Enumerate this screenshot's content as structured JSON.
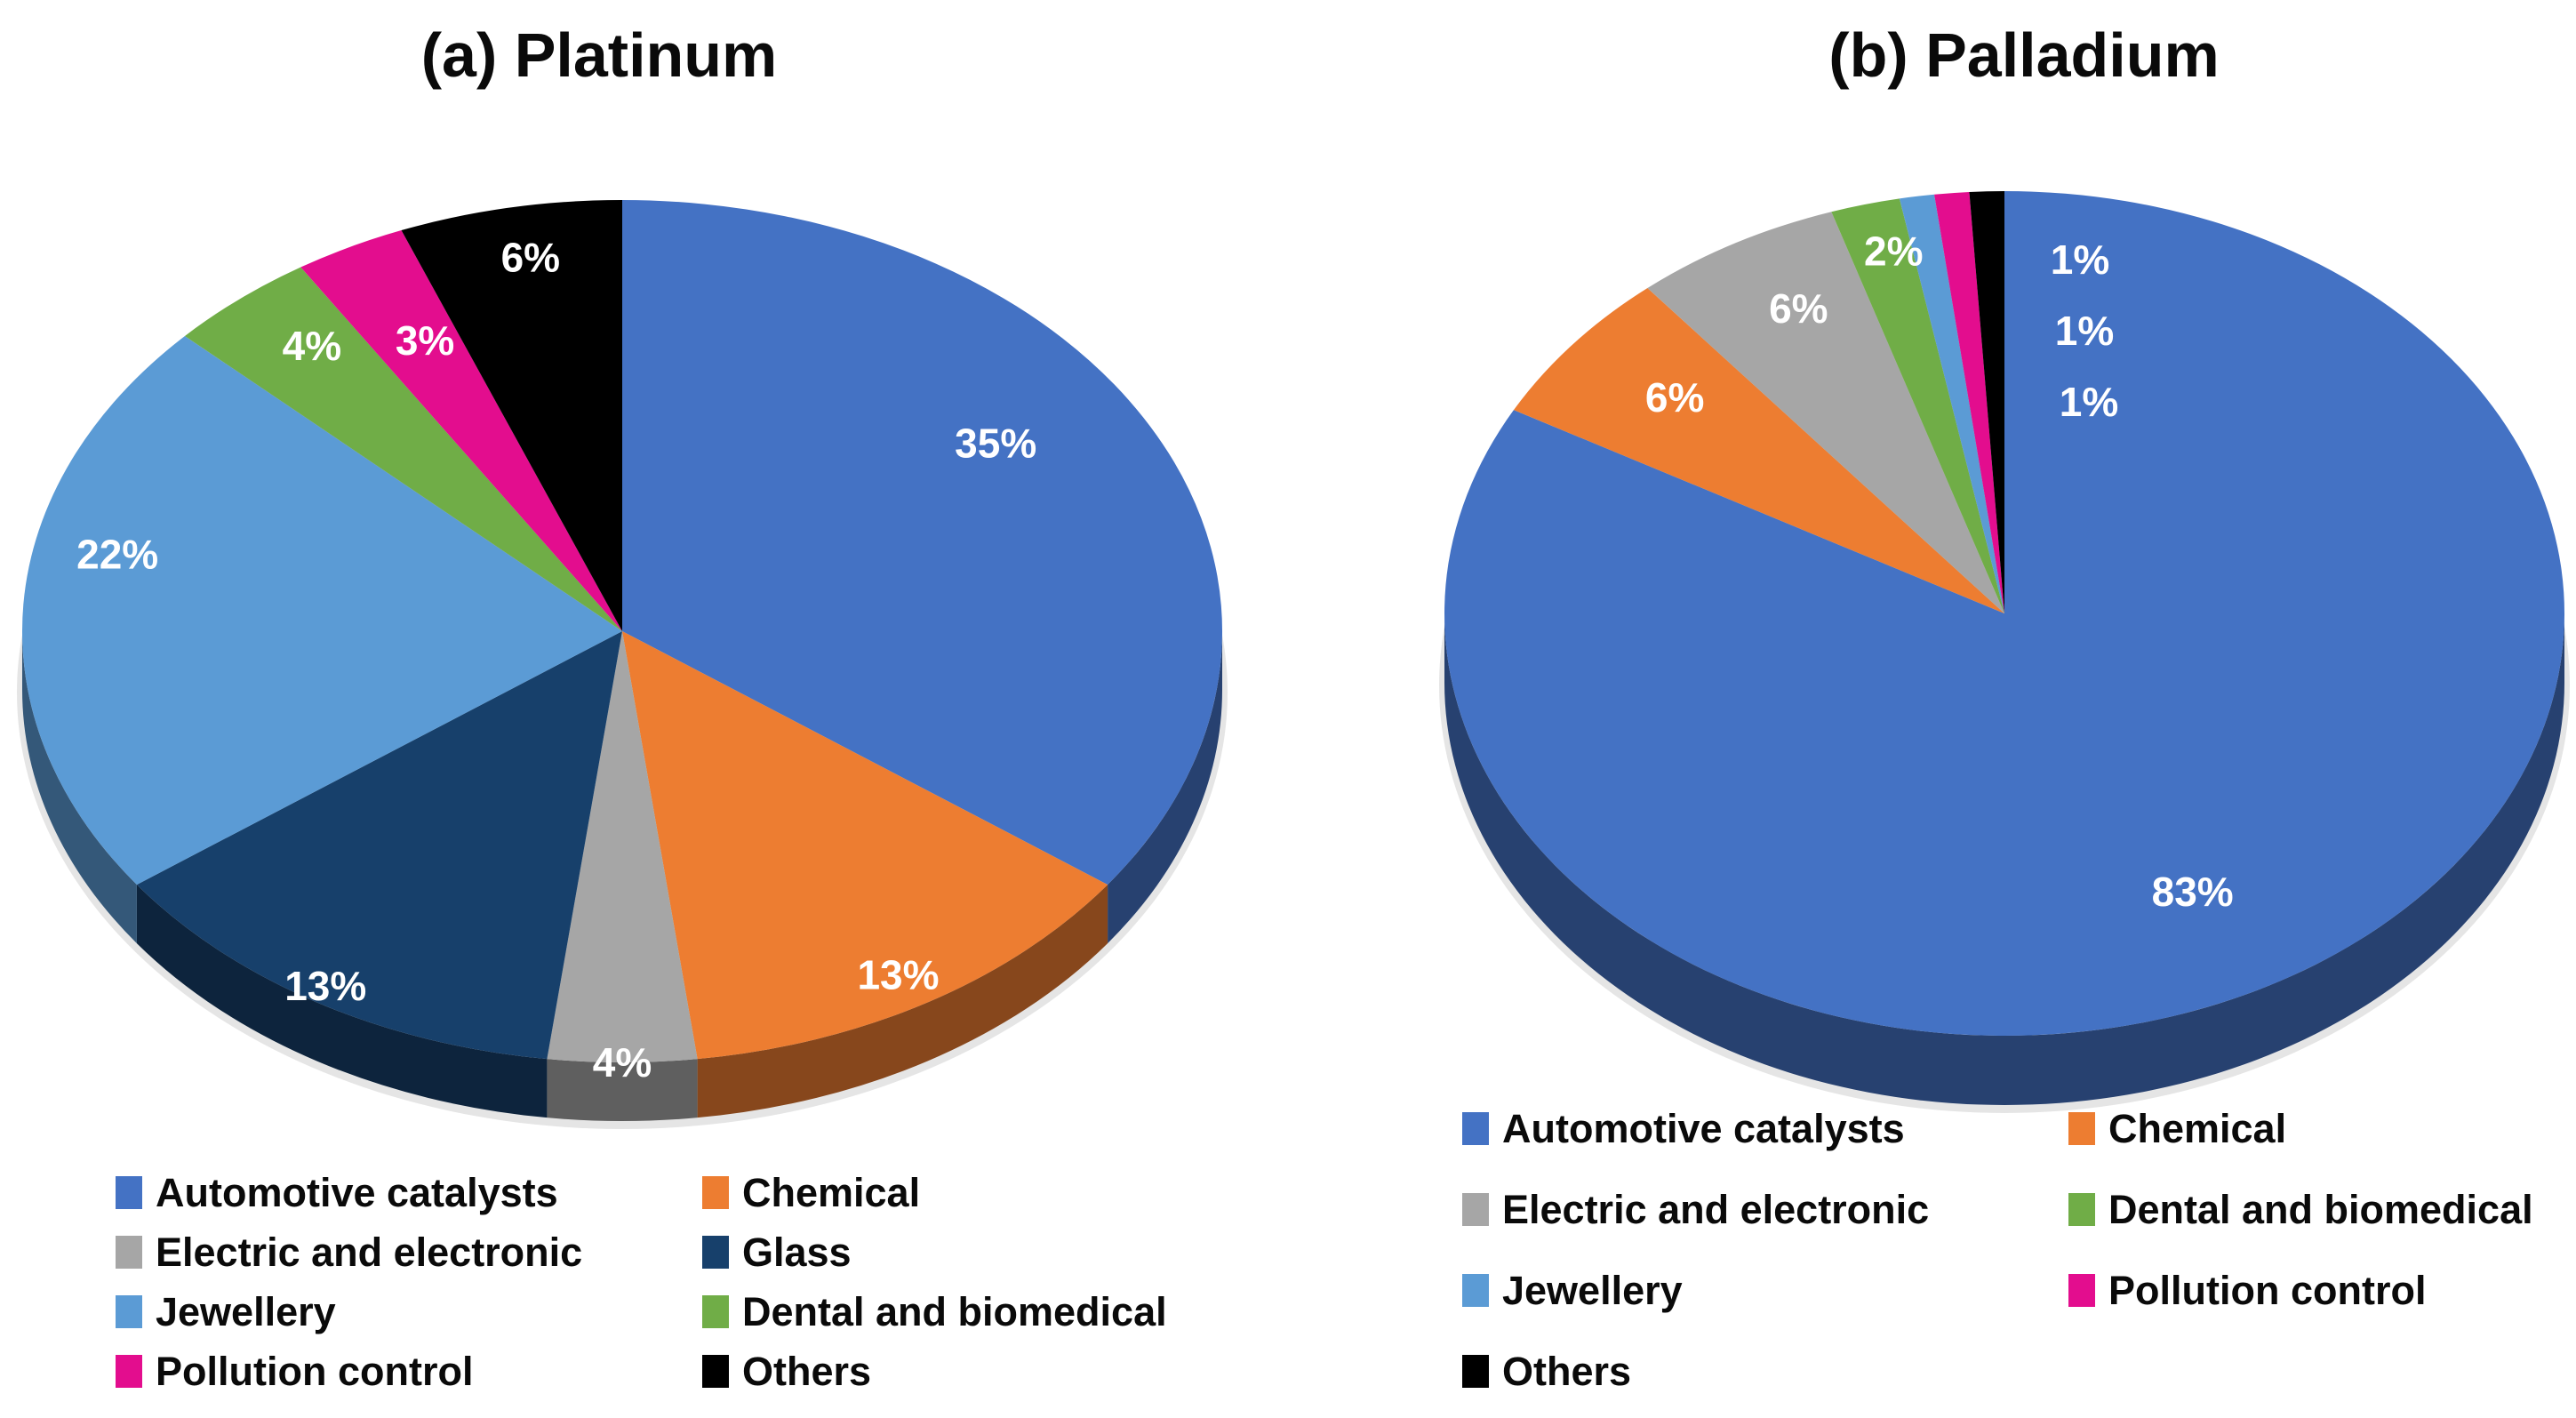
{
  "figure": {
    "background": "#FFFFFF",
    "label_text_color": "#FFFFFF",
    "legend_text_color": "#0A0A0A"
  },
  "chart_data": [
    {
      "type": "pie",
      "style": "3d",
      "title": "(a) Platinum",
      "categories": [
        "Automotive catalysts",
        "Chemical",
        "Electric and electronic",
        "Glass",
        "Jewellery",
        "Dental and biomedical",
        "Pollution control",
        "Others"
      ],
      "values": [
        35,
        13,
        4,
        13,
        22,
        4,
        3,
        6
      ],
      "labels": [
        "35%",
        "13%",
        "4%",
        "13%",
        "22%",
        "4%",
        "3%",
        "6%"
      ],
      "colors": [
        "#4472C4",
        "#ED7D31",
        "#A6A6A6",
        "#17406B",
        "#5B9BD5",
        "#70AD47",
        "#E30D8E",
        "#000000"
      ],
      "start_angle_deg": 0,
      "direction": "clockwise",
      "legend_position": "bottom",
      "legend_columns": 2
    },
    {
      "type": "pie",
      "style": "3d",
      "title": "(b) Palladium",
      "categories": [
        "Automotive catalysts",
        "Chemical",
        "Electric and electronic",
        "Dental and biomedical",
        "Jewellery",
        "Pollution control",
        "Others"
      ],
      "values": [
        83,
        6,
        6,
        2,
        1,
        1,
        1
      ],
      "labels": [
        "83%",
        "6%",
        "6%",
        "2%",
        "1%",
        "1%",
        "1%"
      ],
      "colors": [
        "#4472C4",
        "#ED7D31",
        "#A6A6A6",
        "#70AD47",
        "#5B9BD5",
        "#E30D8E",
        "#000000"
      ],
      "start_angle_deg": 0,
      "direction": "clockwise",
      "legend_position": "bottom",
      "legend_columns": 2
    }
  ]
}
